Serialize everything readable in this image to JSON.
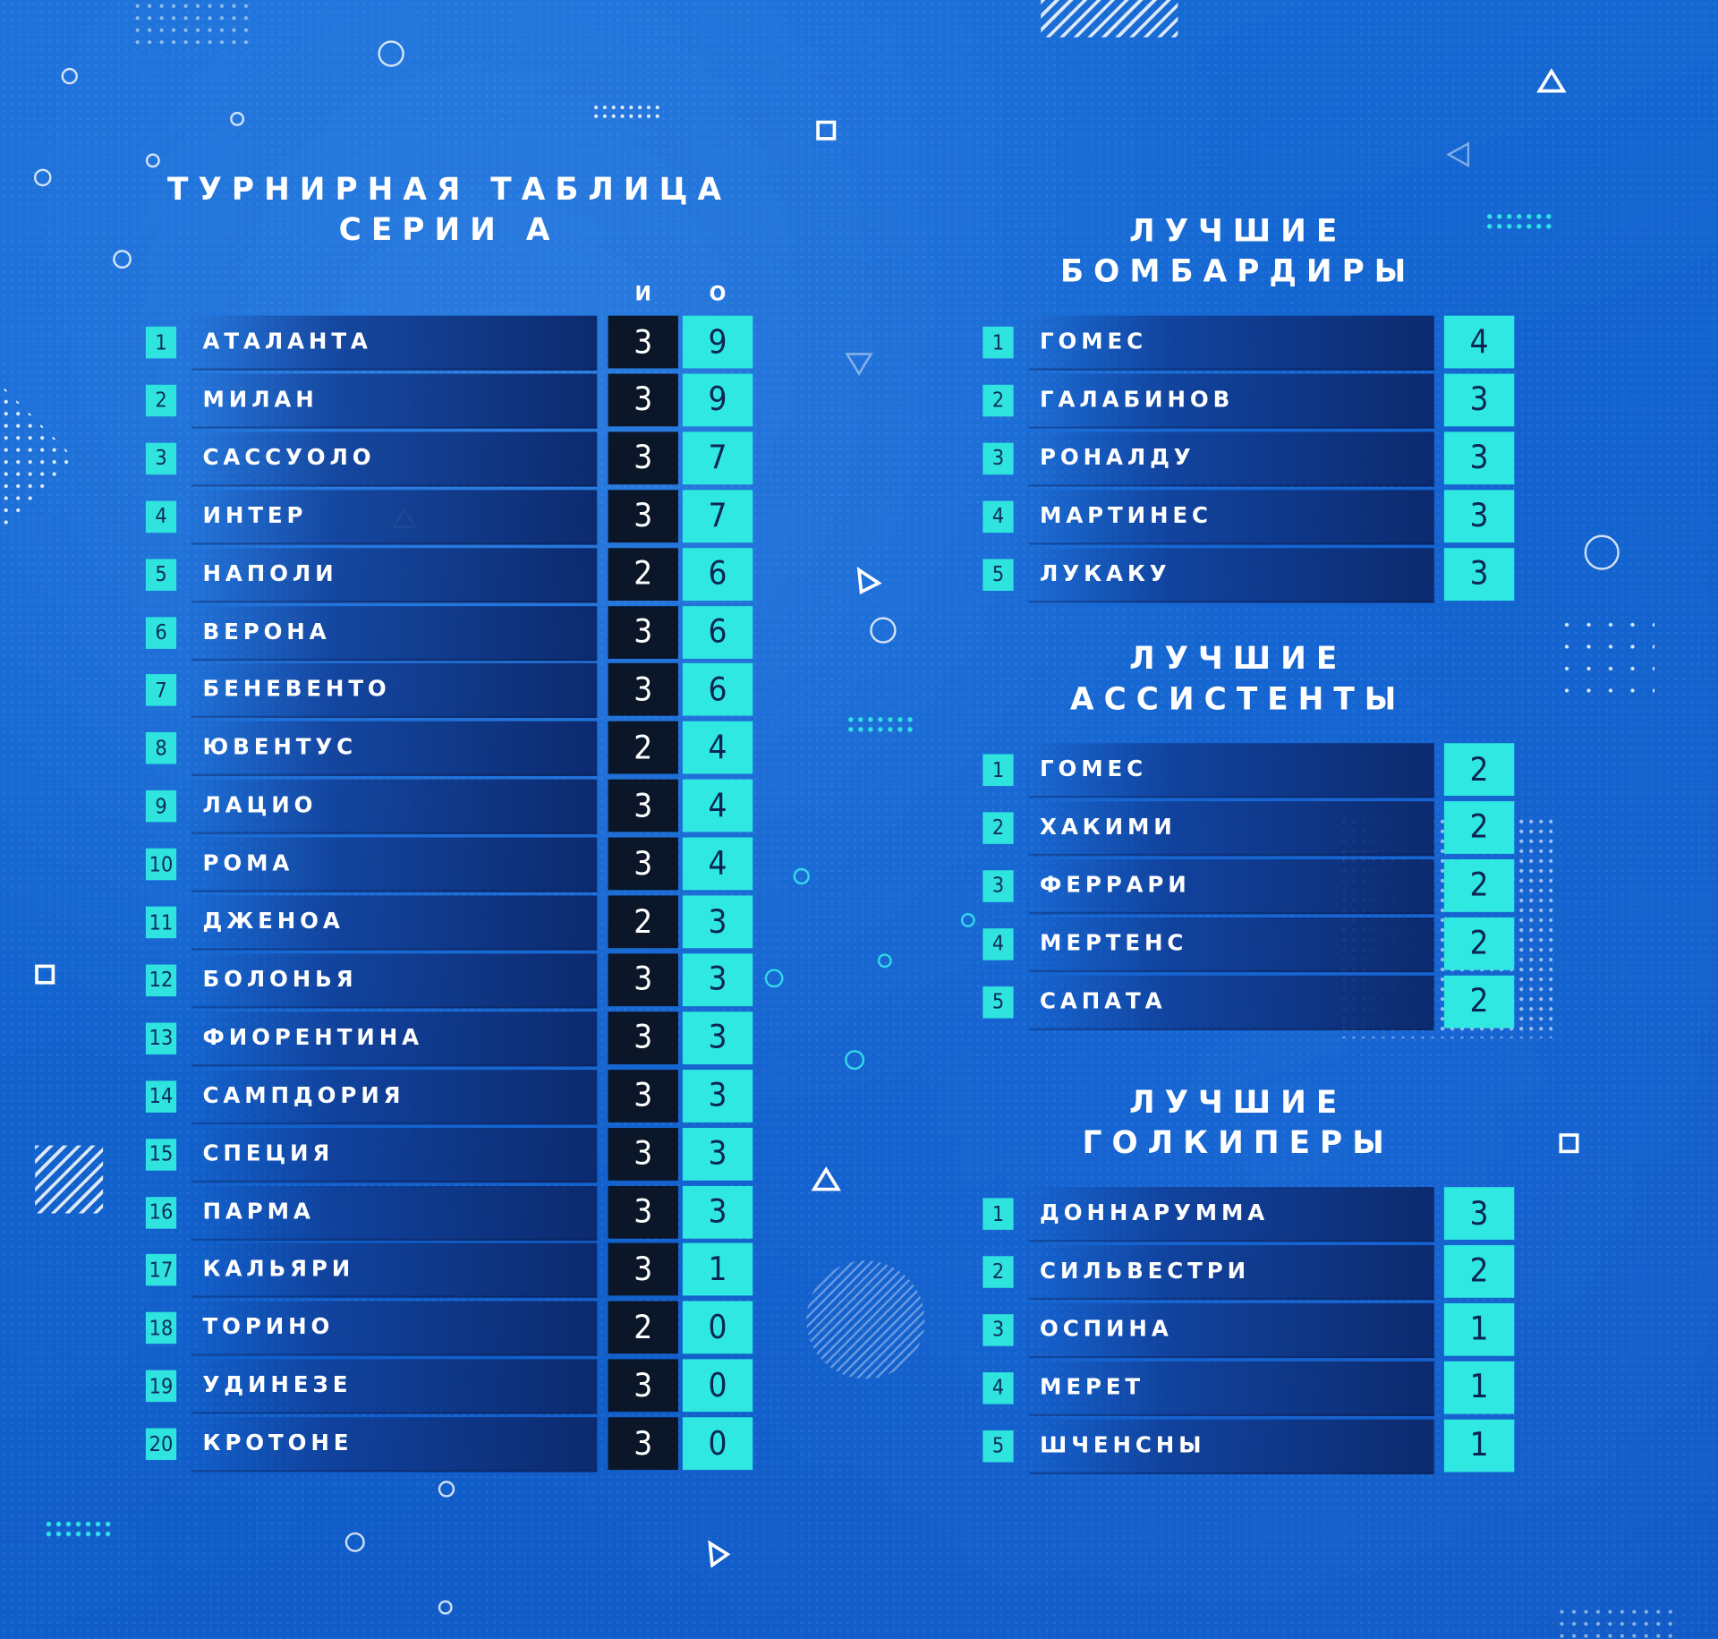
{
  "standings": {
    "title_line1": "ТУРНИРНАЯ ТАБЛИЦА",
    "title_line2": "СЕРИИ А",
    "col_games": "И",
    "col_points": "О",
    "rows": [
      {
        "rank": "1",
        "team": "АТАЛАНТА",
        "games": "3",
        "points": "9"
      },
      {
        "rank": "2",
        "team": "МИЛАН",
        "games": "3",
        "points": "9"
      },
      {
        "rank": "3",
        "team": "САССУОЛО",
        "games": "3",
        "points": "7"
      },
      {
        "rank": "4",
        "team": "ИНТЕР",
        "games": "3",
        "points": "7"
      },
      {
        "rank": "5",
        "team": "НАПОЛИ",
        "games": "2",
        "points": "6"
      },
      {
        "rank": "6",
        "team": "ВЕРОНА",
        "games": "3",
        "points": "6"
      },
      {
        "rank": "7",
        "team": "БЕНЕВЕНТО",
        "games": "3",
        "points": "6"
      },
      {
        "rank": "8",
        "team": "ЮВЕНТУС",
        "games": "2",
        "points": "4"
      },
      {
        "rank": "9",
        "team": "ЛАЦИО",
        "games": "3",
        "points": "4"
      },
      {
        "rank": "10",
        "team": "РОМА",
        "games": "3",
        "points": "4"
      },
      {
        "rank": "11",
        "team": "ДЖЕНОА",
        "games": "2",
        "points": "3"
      },
      {
        "rank": "12",
        "team": "БОЛОНЬЯ",
        "games": "3",
        "points": "3"
      },
      {
        "rank": "13",
        "team": "ФИОРЕНТИНА",
        "games": "3",
        "points": "3"
      },
      {
        "rank": "14",
        "team": "САМПДОРИЯ",
        "games": "3",
        "points": "3"
      },
      {
        "rank": "15",
        "team": "СПЕЦИЯ",
        "games": "3",
        "points": "3"
      },
      {
        "rank": "16",
        "team": "ПАРМА",
        "games": "3",
        "points": "3"
      },
      {
        "rank": "17",
        "team": "КАЛЬЯРИ",
        "games": "3",
        "points": "1"
      },
      {
        "rank": "18",
        "team": "ТОРИНО",
        "games": "2",
        "points": "0"
      },
      {
        "rank": "19",
        "team": "УДИНЕЗЕ",
        "games": "3",
        "points": "0"
      },
      {
        "rank": "20",
        "team": "КРОТОНЕ",
        "games": "3",
        "points": "0"
      }
    ]
  },
  "scorers": {
    "title_line1": "ЛУЧШИЕ",
    "title_line2": "БОМБАРДИРЫ",
    "rows": [
      {
        "rank": "1",
        "name": "ГОМЕС",
        "value": "4"
      },
      {
        "rank": "2",
        "name": "ГАЛАБИНОВ",
        "value": "3"
      },
      {
        "rank": "3",
        "name": "РОНАЛДУ",
        "value": "3"
      },
      {
        "rank": "4",
        "name": "МАРТИНЕС",
        "value": "3"
      },
      {
        "rank": "5",
        "name": "ЛУКАКУ",
        "value": "3"
      }
    ]
  },
  "assists": {
    "title_line1": "ЛУЧШИЕ",
    "title_line2": "АССИСТЕНТЫ",
    "rows": [
      {
        "rank": "1",
        "name": "ГОМЕС",
        "value": "2"
      },
      {
        "rank": "2",
        "name": "ХАКИМИ",
        "value": "2"
      },
      {
        "rank": "3",
        "name": "ФЕРРАРИ",
        "value": "2"
      },
      {
        "rank": "4",
        "name": "МЕРТЕНС",
        "value": "2"
      },
      {
        "rank": "5",
        "name": "САПАТА",
        "value": "2"
      }
    ]
  },
  "goalkeepers": {
    "title_line1": "ЛУЧШИЕ",
    "title_line2": "ГОЛКИПЕРЫ",
    "rows": [
      {
        "rank": "1",
        "name": "ДОННАРУММА",
        "value": "3"
      },
      {
        "rank": "2",
        "name": "СИЛЬВЕСТРИ",
        "value": "2"
      },
      {
        "rank": "3",
        "name": "ОСПИНА",
        "value": "1"
      },
      {
        "rank": "4",
        "name": "МЕРЕТ",
        "value": "1"
      },
      {
        "rank": "5",
        "name": "ШЧЕНСНЫ",
        "value": "1"
      }
    ]
  },
  "colors": {
    "background": "#1464cc",
    "accent_cyan": "#2fe8e2",
    "games_cell": "#0b1628",
    "name_bar_dark": "#0c2a6e"
  }
}
